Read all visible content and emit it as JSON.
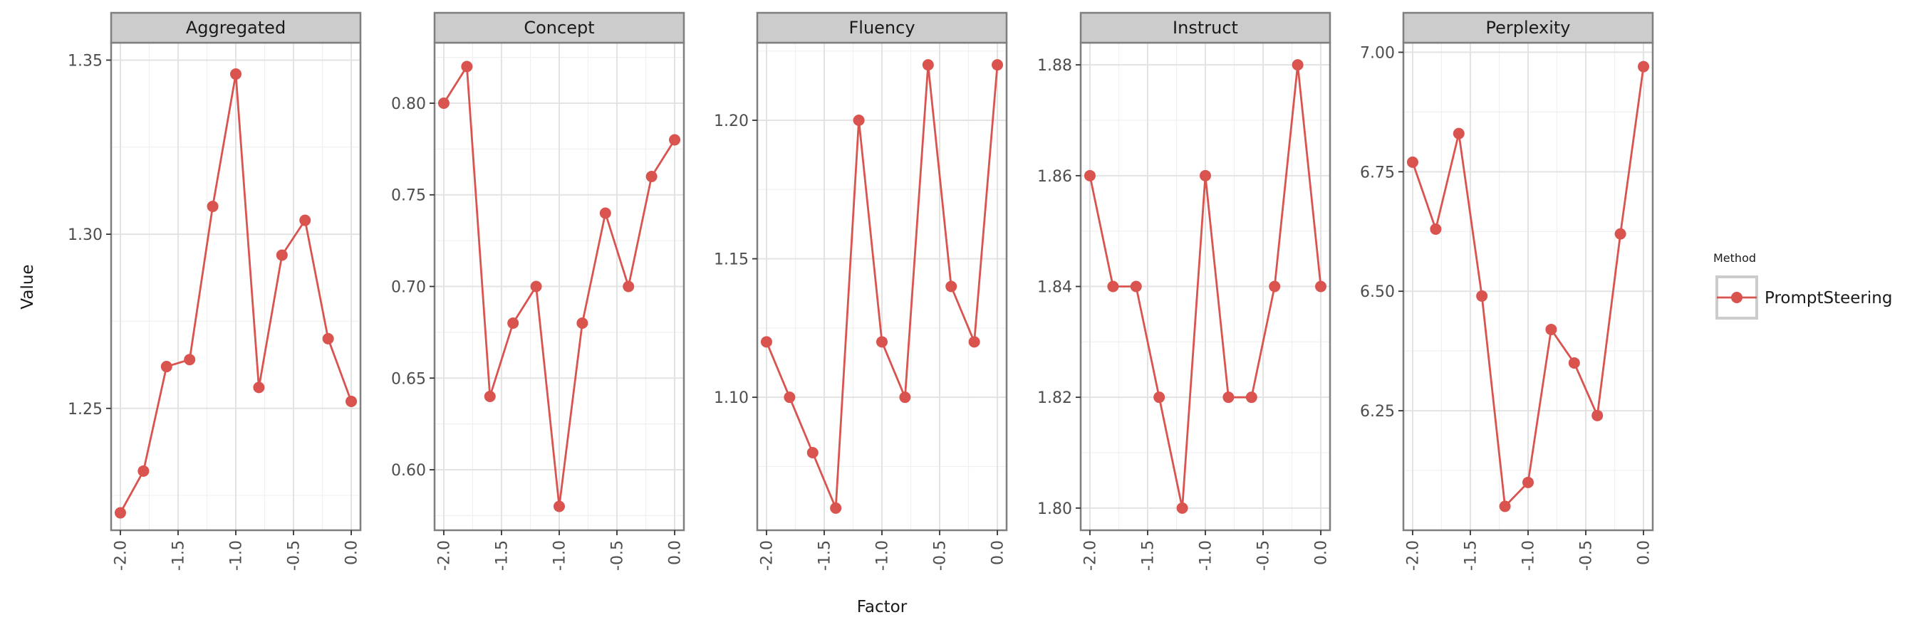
{
  "chart_data": {
    "type": "line",
    "facet_by": "Metric",
    "xlabel": "Factor",
    "ylabel": "Value",
    "x": [
      -2.0,
      -1.8,
      -1.6,
      -1.4,
      -1.2,
      -1.0,
      -0.8,
      -0.6,
      -0.4,
      -0.2,
      0.0
    ],
    "x_ticks": [
      -2.0,
      -1.5,
      -1.0,
      -0.5,
      0.0
    ],
    "x_tick_labels": [
      "-2.0",
      "-1.5",
      "-1.0",
      "-0.5",
      "0.0"
    ],
    "xlim": [
      -2.08,
      0.08
    ],
    "grid": true,
    "legend": {
      "title": "Method",
      "position": "right",
      "entries": [
        "PromptSteering"
      ]
    },
    "color": "#d9534f",
    "panels": [
      {
        "name": "Aggregated",
        "ylim": [
          1.215,
          1.355
        ],
        "y_ticks": [
          1.25,
          1.3,
          1.35
        ],
        "y_tick_labels": [
          "1.25",
          "1.30",
          "1.35"
        ],
        "series": [
          {
            "name": "PromptSteering",
            "values": [
              1.22,
              1.232,
              1.262,
              1.264,
              1.308,
              1.346,
              1.256,
              1.294,
              1.304,
              1.27,
              1.252
            ]
          }
        ]
      },
      {
        "name": "Concept",
        "ylim": [
          0.567,
          0.833
        ],
        "y_ticks": [
          0.6,
          0.65,
          0.7,
          0.75,
          0.8
        ],
        "y_tick_labels": [
          "0.60",
          "0.65",
          "0.70",
          "0.75",
          "0.80"
        ],
        "series": [
          {
            "name": "PromptSteering",
            "values": [
              0.8,
              0.82,
              0.64,
              0.68,
              0.7,
              0.58,
              0.68,
              0.74,
              0.7,
              0.76,
              0.78
            ]
          }
        ]
      },
      {
        "name": "Fluency",
        "ylim": [
          1.052,
          1.228
        ],
        "y_ticks": [
          1.1,
          1.15,
          1.2
        ],
        "y_tick_labels": [
          "1.10",
          "1.15",
          "1.20"
        ],
        "series": [
          {
            "name": "PromptSteering",
            "values": [
              1.12,
              1.1,
              1.08,
              1.06,
              1.2,
              1.12,
              1.1,
              1.22,
              1.14,
              1.12,
              1.22
            ]
          }
        ]
      },
      {
        "name": "Instruct",
        "ylim": [
          1.796,
          1.884
        ],
        "y_ticks": [
          1.8,
          1.82,
          1.84,
          1.86,
          1.88
        ],
        "y_tick_labels": [
          "1.80",
          "1.82",
          "1.84",
          "1.86",
          "1.88"
        ],
        "series": [
          {
            "name": "PromptSteering",
            "values": [
              1.86,
              1.84,
              1.84,
              1.82,
              1.8,
              1.86,
              1.82,
              1.82,
              1.84,
              1.88,
              1.84
            ]
          }
        ]
      },
      {
        "name": "Perplexity",
        "ylim": [
          6.0,
          7.02
        ],
        "y_ticks": [
          6.25,
          6.5,
          6.75,
          7.0
        ],
        "y_tick_labels": [
          "6.25",
          "6.50",
          "6.75",
          "7.00"
        ],
        "series": [
          {
            "name": "PromptSteering",
            "values": [
              6.77,
              6.63,
              6.83,
              6.49,
              6.05,
              6.1,
              6.42,
              6.35,
              6.24,
              6.62,
              6.97
            ]
          }
        ]
      }
    ]
  }
}
